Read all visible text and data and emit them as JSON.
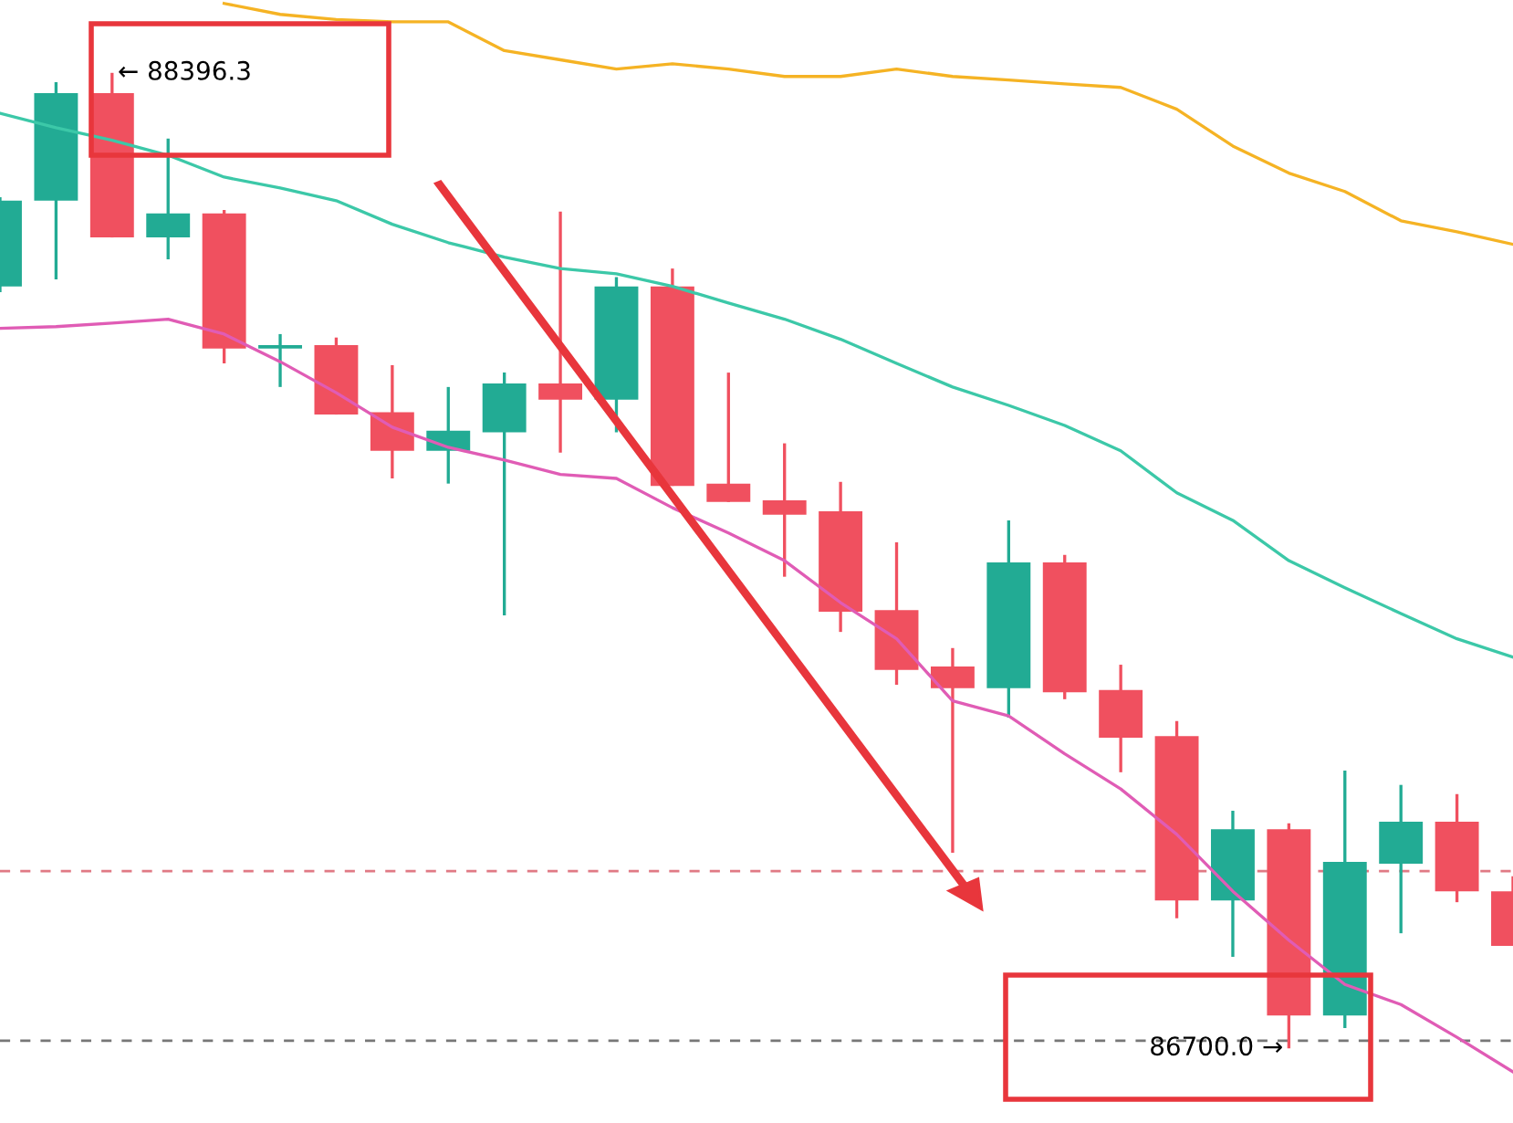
{
  "chart_data": {
    "type": "candlestick",
    "relative": false,
    "tick_labels": false,
    "grid": false,
    "categories": [
      null,
      null,
      null,
      null,
      null,
      null,
      null,
      null,
      null,
      null,
      null,
      null,
      null,
      null,
      null,
      null,
      null,
      null,
      null,
      null,
      null,
      null,
      null,
      null,
      null,
      null,
      null,
      null
    ],
    "colors": [
      "#22ab94",
      "#22ab94",
      "#f0505f",
      "#22ab94",
      "#f0505f",
      "#22ab94",
      "#f0505f",
      "#f0505f",
      "#22ab94",
      "#22ab94",
      "#f0505f",
      "#22ab94",
      "#f0505f",
      "#f0505f",
      "#f0505f",
      "#f0505f",
      "#f0505f",
      "#f0505f",
      "#22ab94",
      "#f0505f",
      "#f0505f",
      "#f0505f",
      "#22ab94",
      "#f0505f",
      "#22ab94",
      "#22ab94",
      "#f0505f",
      "#f0505f"
    ],
    "ohlc": [
      [
        88025,
        88180,
        88015,
        88174
      ],
      [
        88174,
        88380,
        88037,
        88361
      ],
      [
        88361,
        88396.3,
        88110,
        88110
      ],
      [
        88110,
        88282,
        88072,
        88152
      ],
      [
        88152,
        88158,
        87891,
        87917
      ],
      [
        87917,
        87942,
        87850,
        87923
      ],
      [
        87923,
        87936,
        87802,
        87802
      ],
      [
        87806,
        87888,
        87691,
        87739
      ],
      [
        87739,
        87850,
        87682,
        87774
      ],
      [
        87771,
        87875,
        87453,
        87856
      ],
      [
        87856,
        88155,
        87736,
        87828
      ],
      [
        87828,
        88041,
        87771,
        88025
      ],
      [
        88025,
        88056,
        87678,
        87678
      ],
      [
        87682,
        87875,
        87650,
        87650
      ],
      [
        87653,
        87752,
        87520,
        87628
      ],
      [
        87634,
        87685,
        87424,
        87459
      ],
      [
        87462,
        87580,
        87332,
        87358
      ],
      [
        87364,
        87396,
        87040,
        87326
      ],
      [
        87326,
        87618,
        87275,
        87545
      ],
      [
        87545,
        87558,
        87307,
        87319
      ],
      [
        87323,
        87367,
        87180,
        87240
      ],
      [
        87243,
        87269,
        86926,
        86957
      ],
      [
        86957,
        87113,
        86859,
        87081
      ],
      [
        87081,
        87091,
        86700.0,
        86757
      ],
      [
        86757,
        87183,
        86735,
        87024
      ],
      [
        87021,
        87158,
        86900,
        87094
      ],
      [
        87094,
        87142,
        86954,
        86973
      ],
      [
        86973,
        86999,
        86878,
        86878
      ]
    ],
    "series": [
      {
        "type": "line",
        "color": "#f5b324",
        "values": [
          null,
          null,
          null,
          null,
          88517,
          88498,
          88489,
          88485,
          88485,
          88435,
          88419,
          88403,
          88412,
          88403,
          88390,
          88390,
          88403,
          88390,
          88384,
          88377,
          88371,
          88333,
          88269,
          88222,
          88190,
          88139,
          88120,
          88098
        ]
      },
      {
        "type": "line",
        "color": "#3cc8a8",
        "values": [
          88326,
          88301,
          88279,
          88253,
          88215,
          88196,
          88174,
          88133,
          88101,
          88076,
          88056,
          88047,
          88025,
          87996,
          87968,
          87933,
          87891,
          87850,
          87818,
          87783,
          87739,
          87666,
          87618,
          87548,
          87501,
          87456,
          87412,
          87380
        ]
      },
      {
        "type": "line",
        "color": "#e05cb5",
        "values": [
          87952,
          87955,
          87961,
          87968,
          87942,
          87894,
          87840,
          87780,
          87745,
          87723,
          87698,
          87691,
          87640,
          87596,
          87548,
          87475,
          87412,
          87304,
          87278,
          87212,
          87151,
          87072,
          86973,
          86888,
          86811,
          86776,
          86719,
          86659
        ]
      }
    ],
    "ylim": [
      86570,
      88523
    ],
    "ref_lines": [
      {
        "axis": "y",
        "value": 87008,
        "color": "#e07a85",
        "line_style": "dashed"
      },
      {
        "axis": "y",
        "value": 86713,
        "color": "#777777",
        "line_style": "dashed"
      }
    ],
    "annotations": [
      "← 88396.3",
      "86700.0 →"
    ]
  }
}
